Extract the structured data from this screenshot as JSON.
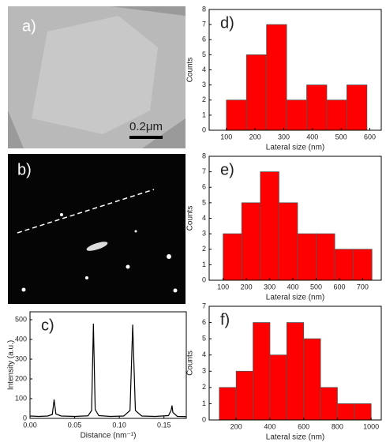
{
  "panels": {
    "a": {
      "label": "a)",
      "scale_bar": "0.2μm"
    },
    "b": {
      "label": "b)"
    }
  },
  "chart_data": [
    {
      "type": "line",
      "label": "c)",
      "x_label": "Distance (nm⁻¹)",
      "y_label": "Intensity (a.u.)",
      "color": "#000000",
      "x": [
        0,
        0.01,
        0.02,
        0.025,
        0.027,
        0.029,
        0.035,
        0.05,
        0.065,
        0.069,
        0.071,
        0.073,
        0.077,
        0.09,
        0.105,
        0.112,
        0.115,
        0.118,
        0.125,
        0.14,
        0.155,
        0.158,
        0.159,
        0.16,
        0.165,
        0.175
      ],
      "values": [
        12,
        10,
        12,
        20,
        95,
        22,
        12,
        10,
        13,
        40,
        480,
        45,
        14,
        10,
        12,
        40,
        475,
        40,
        12,
        10,
        14,
        40,
        65,
        30,
        10,
        9
      ],
      "xlim": [
        0,
        0.175
      ],
      "xticks": [
        {
          "value": 0,
          "label": "0.00"
        },
        {
          "value": 0.05,
          "label": "0.05"
        },
        {
          "value": 0.1,
          "label": "0.10"
        },
        {
          "value": 0.15,
          "label": "0.15"
        }
      ],
      "ylim": [
        0,
        540
      ],
      "yticks": [
        0,
        100,
        200,
        300,
        400,
        500
      ]
    },
    {
      "type": "histogram",
      "label": "d)",
      "x_label": "Lateral size (nm)",
      "y_label": "Counts",
      "color": "#ff0000",
      "bins": [
        100,
        170,
        240,
        310,
        380,
        450,
        520,
        590
      ],
      "values": [
        2,
        5,
        7,
        2,
        3,
        2,
        3
      ],
      "xlim": [
        40,
        640
      ],
      "xticks": [
        100,
        200,
        300,
        400,
        500,
        600
      ],
      "ylim": [
        0,
        8
      ],
      "yticks": [
        0,
        1,
        2,
        3,
        4,
        5,
        6,
        7,
        8
      ]
    },
    {
      "type": "histogram",
      "label": "e)",
      "x_label": "Lateral size (nm)",
      "y_label": "Counts",
      "color": "#ff0000",
      "bins": [
        100,
        180,
        260,
        340,
        420,
        500,
        580,
        660,
        740
      ],
      "values": [
        3,
        5,
        7,
        5,
        3,
        3,
        2,
        2
      ],
      "xlim": [
        40,
        780
      ],
      "xticks": [
        100,
        200,
        300,
        400,
        500,
        600,
        700
      ],
      "ylim": [
        0,
        8
      ],
      "yticks": [
        0,
        1,
        2,
        3,
        4,
        5,
        6,
        7,
        8
      ]
    },
    {
      "type": "histogram",
      "label": "f)",
      "x_label": "Lateral size (nm)",
      "y_label": "Counts",
      "color": "#ff0000",
      "bins": [
        100,
        200,
        300,
        400,
        500,
        600,
        700,
        800,
        900,
        1000
      ],
      "values": [
        2,
        3,
        6,
        4,
        6,
        5,
        2,
        1,
        1
      ],
      "xlim": [
        40,
        1060
      ],
      "xticks": [
        200,
        400,
        600,
        800,
        1000
      ],
      "ylim": [
        0,
        7
      ],
      "yticks": [
        0,
        1,
        2,
        3,
        4,
        5,
        6,
        7
      ]
    }
  ]
}
